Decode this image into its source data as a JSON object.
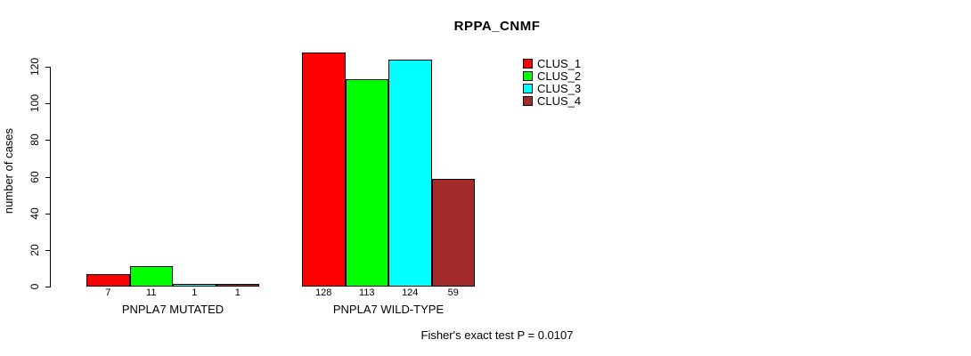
{
  "chart_data": {
    "type": "bar",
    "title": "RPPA_CNMF",
    "ylabel": "number of cases",
    "xlabel": "",
    "categories": [
      "PNPLA7 MUTATED",
      "PNPLA7 WILD-TYPE"
    ],
    "series": [
      {
        "name": "CLUS_1",
        "color": "#FF0000",
        "values": [
          7,
          128
        ]
      },
      {
        "name": "CLUS_2",
        "color": "#00FF00",
        "values": [
          11,
          113
        ]
      },
      {
        "name": "CLUS_3",
        "color": "#00FFFF",
        "values": [
          1,
          124
        ]
      },
      {
        "name": "CLUS_4",
        "color": "#A52A2A",
        "values": [
          1,
          59
        ]
      }
    ],
    "yticks": [
      0,
      20,
      40,
      60,
      80,
      100,
      120
    ],
    "ylim": [
      0,
      128
    ],
    "grid": false,
    "bar_value_labels": true,
    "legend_position": "right-inside",
    "legend_entries": [
      "CLUS_1",
      "CLUS_2",
      "CLUS_3",
      "CLUS_4"
    ],
    "annotation": "Fisher's exact test P = 0.0107"
  }
}
